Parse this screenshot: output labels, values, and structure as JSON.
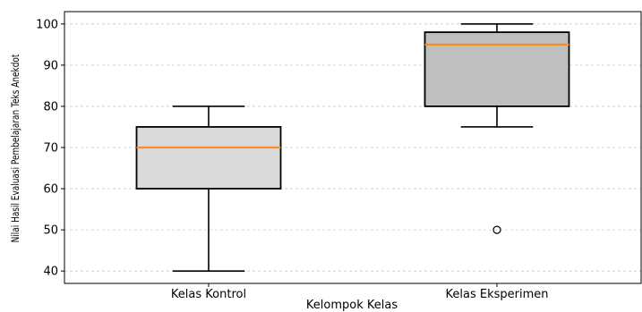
{
  "chart_data": {
    "type": "box",
    "title": "",
    "xlabel": "Kelompok Kelas",
    "ylabel": "Nilai Hasil Evaluasi Pembelajaran Teks Anekdot",
    "ylim": [
      37,
      103
    ],
    "yticks": [
      40,
      50,
      60,
      70,
      80,
      90,
      100
    ],
    "grid": "horizontal dashed",
    "categories": [
      "Kelas Kontrol",
      "Kelas Eksperimen"
    ],
    "boxes": [
      {
        "category": "Kelas Kontrol",
        "whisker_low": 40,
        "q1": 60,
        "median": 70,
        "q3": 75,
        "whisker_high": 80,
        "outliers": [],
        "fill": "#d9d9d9"
      },
      {
        "category": "Kelas Eksperimen",
        "whisker_low": 75,
        "q1": 80,
        "median": 95,
        "q3": 98,
        "whisker_high": 100,
        "outliers": [
          50
        ],
        "fill": "#bfbfbf"
      }
    ],
    "median_color": "#f28e2b",
    "box_edge_color": "#000000"
  }
}
